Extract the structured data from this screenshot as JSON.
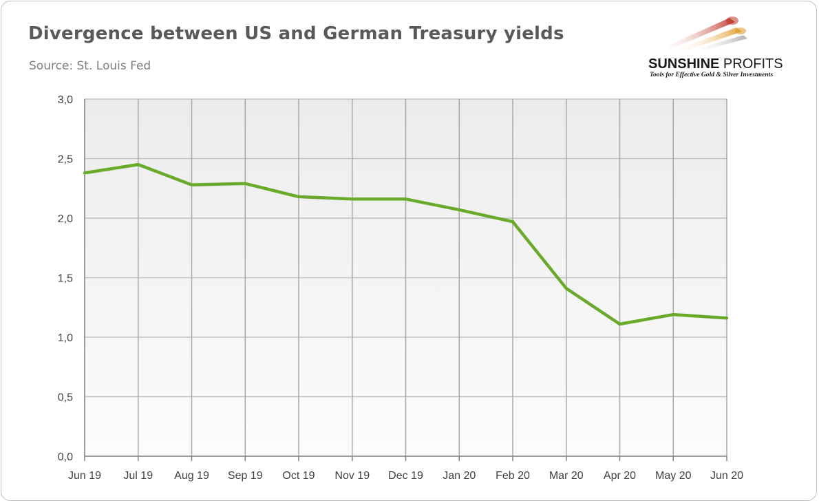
{
  "title": "Divergence between US and German Treasury yields",
  "subtitle": "Source: St. Louis Fed",
  "logo": {
    "name_bold": "SUNSHINE",
    "name_rest": " PROFITS",
    "tagline": "Tools for Effective Gold & Silver Investments",
    "colors": [
      "#c0392b",
      "#e0a030",
      "#b8b8b8"
    ]
  },
  "chart_data": {
    "type": "line",
    "title": "Divergence between US and German Treasury yields",
    "xlabel": "",
    "ylabel": "",
    "categories": [
      "Jun 19",
      "Jul 19",
      "Aug 19",
      "Sep 19",
      "Oct 19",
      "Nov 19",
      "Dec 19",
      "Jan 20",
      "Feb 20",
      "Mar 20",
      "Apr 20",
      "May 20",
      "Jun 20"
    ],
    "series": [
      {
        "color": "#6aaa2a",
        "values": [
          2.38,
          2.45,
          2.28,
          2.29,
          2.18,
          2.16,
          2.16,
          2.07,
          1.97,
          1.41,
          1.11,
          1.19,
          1.16
        ]
      }
    ],
    "ylim": [
      0,
      3
    ],
    "yticks": [
      "0,0",
      "0,5",
      "1,0",
      "1,5",
      "2,0",
      "2,5",
      "3,0"
    ],
    "grid": true,
    "legend": "none"
  }
}
